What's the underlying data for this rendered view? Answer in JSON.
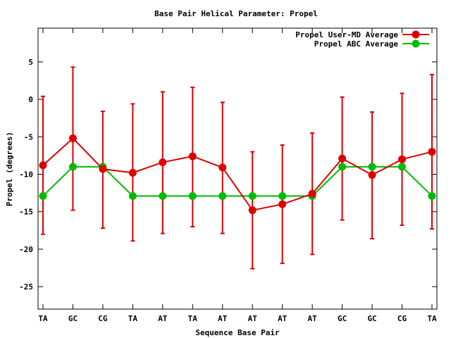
{
  "chart_data": {
    "type": "line",
    "title": "Base Pair Helical Parameter: Propel",
    "xlabel": "Sequence Base Pair",
    "ylabel": "Propel (degrees)",
    "categories": [
      "TA",
      "GC",
      "CG",
      "TA",
      "AT",
      "TA",
      "AT",
      "AT",
      "AT",
      "AT",
      "GC",
      "GC",
      "CG",
      "TA"
    ],
    "ylim": [
      -28,
      9.5
    ],
    "yticks": [
      5,
      0,
      -5,
      -10,
      -15,
      -20,
      -25
    ],
    "ytick_labels": [
      "5",
      "0",
      "-5",
      "-10",
      "-15",
      "-20",
      "-25"
    ],
    "grid": false,
    "legend_position": "top-right",
    "series": [
      {
        "name": "Propel User-MD Average",
        "color": "#dd0000",
        "values": [
          -8.8,
          -5.2,
          -9.3,
          -9.8,
          -8.4,
          -7.6,
          -9.1,
          -14.8,
          -14.0,
          -12.6,
          -7.9,
          -10.1,
          -8.0,
          -7.0
        ],
        "error_low": [
          -18.0,
          -14.8,
          -17.2,
          -18.9,
          -17.9,
          -17.0,
          -17.9,
          -22.6,
          -21.9,
          -20.7,
          -16.1,
          -18.6,
          -16.8,
          -17.3
        ],
        "error_high": [
          0.4,
          4.3,
          -1.6,
          -0.6,
          1.0,
          1.6,
          -0.4,
          -7.0,
          -6.1,
          -4.5,
          0.3,
          -1.7,
          0.8,
          3.3
        ]
      },
      {
        "name": "Propel ABC Average",
        "color": "#00bb00",
        "values": [
          -12.9,
          -9.0,
          -9.0,
          -12.9,
          -12.9,
          -12.9,
          -12.9,
          -12.9,
          -12.9,
          -12.9,
          -9.0,
          -9.0,
          -9.0,
          -12.9
        ]
      }
    ]
  }
}
